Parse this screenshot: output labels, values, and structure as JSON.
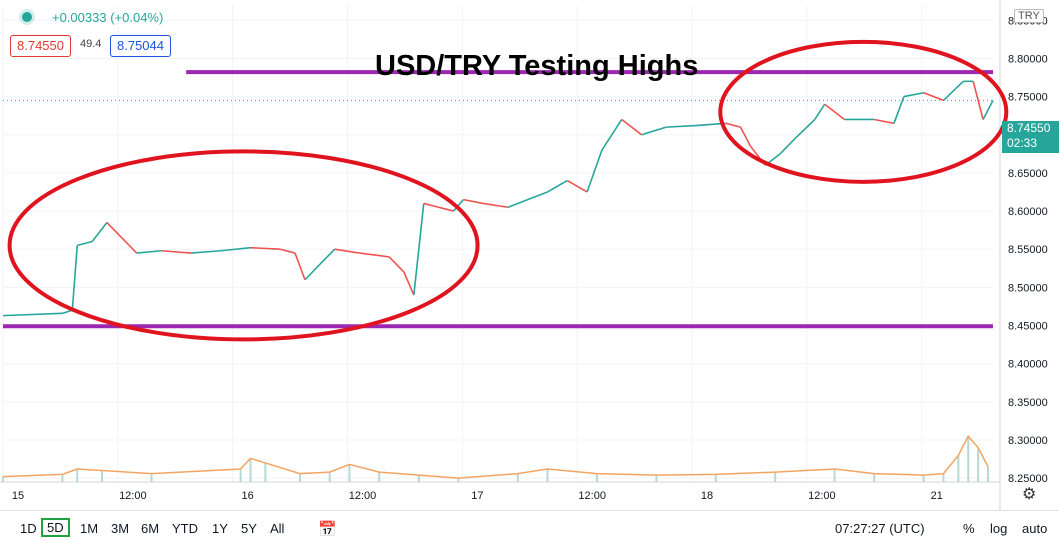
{
  "header": {
    "change": "+0.00333 (+0.04%)",
    "bid": "8.74550",
    "spread": "49.4",
    "ask": "8.75044",
    "symbol_tag": "TRY"
  },
  "annotation_title": "USD/TRY Testing Highs",
  "price_label": {
    "price": "8.74550",
    "countdown": "02:33"
  },
  "colors": {
    "up": "#26a69a",
    "down": "#ef5350",
    "purple": "#9c27b0",
    "ellipse": "#e0141e"
  },
  "chart_data": {
    "type": "line",
    "title": "USD/TRY Testing Highs",
    "x_ticks": [
      "15",
      "12:00",
      "16",
      "12:00",
      "17",
      "12:00",
      "18",
      "12:00",
      "21"
    ],
    "y_ticks": [
      "8.25000",
      "8.30000",
      "8.35000",
      "8.40000",
      "8.45000",
      "8.50000",
      "8.55000",
      "8.60000",
      "8.65000",
      "8.70000",
      "8.75000",
      "8.80000",
      "8.85000"
    ],
    "ylim": [
      8.245,
      8.87
    ],
    "xlim": [
      0,
      100
    ],
    "tick_x_positions": [
      0,
      11.6,
      23.2,
      34.8,
      46.4,
      58.0,
      69.6,
      81.2,
      92.8
    ],
    "series": [
      {
        "values": [
          [
            0,
            8.463
          ],
          [
            6.0,
            8.466
          ],
          [
            7.0,
            8.47
          ],
          [
            7.5,
            8.555
          ],
          [
            9,
            8.56
          ],
          [
            10.5,
            8.585
          ],
          [
            12,
            8.565
          ],
          [
            13.5,
            8.545
          ],
          [
            16,
            8.548
          ],
          [
            19,
            8.545
          ],
          [
            22,
            8.548
          ],
          [
            25,
            8.552
          ],
          [
            28,
            8.55
          ],
          [
            29.5,
            8.545
          ],
          [
            30.5,
            8.51
          ],
          [
            32,
            8.53
          ],
          [
            33.5,
            8.55
          ],
          [
            36,
            8.545
          ],
          [
            39,
            8.54
          ],
          [
            40.5,
            8.52
          ],
          [
            41.5,
            8.49
          ],
          [
            42.5,
            8.61
          ],
          [
            44,
            8.605
          ],
          [
            45.5,
            8.6
          ],
          [
            46.5,
            8.615
          ],
          [
            48.5,
            8.61
          ],
          [
            51,
            8.605
          ],
          [
            53,
            8.615
          ],
          [
            55,
            8.625
          ],
          [
            57,
            8.64
          ],
          [
            59,
            8.625
          ],
          [
            60.5,
            8.68
          ],
          [
            62.5,
            8.72
          ],
          [
            64.5,
            8.7
          ],
          [
            67,
            8.71
          ],
          [
            70,
            8.712
          ],
          [
            73,
            8.715
          ],
          [
            74.5,
            8.71
          ],
          [
            75.5,
            8.685
          ],
          [
            77,
            8.66
          ],
          [
            78.5,
            8.675
          ],
          [
            80,
            8.695
          ],
          [
            82,
            8.72
          ],
          [
            83,
            8.74
          ],
          [
            85,
            8.72
          ],
          [
            88,
            8.72
          ],
          [
            90,
            8.715
          ],
          [
            91,
            8.75
          ],
          [
            93,
            8.755
          ],
          [
            95,
            8.745
          ],
          [
            97,
            8.77
          ],
          [
            98,
            8.77
          ],
          [
            99,
            8.72
          ],
          [
            100,
            8.745
          ]
        ]
      }
    ],
    "volume": [
      [
        0,
        8.252
      ],
      [
        6,
        8.255
      ],
      [
        7.5,
        8.262
      ],
      [
        10,
        8.26
      ],
      [
        15,
        8.256
      ],
      [
        24,
        8.262
      ],
      [
        25,
        8.276
      ],
      [
        26.5,
        8.27
      ],
      [
        30,
        8.256
      ],
      [
        33,
        8.258
      ],
      [
        35,
        8.268
      ],
      [
        38,
        8.258
      ],
      [
        42,
        8.254
      ],
      [
        46,
        8.25
      ],
      [
        52,
        8.256
      ],
      [
        55,
        8.262
      ],
      [
        60,
        8.256
      ],
      [
        66,
        8.254
      ],
      [
        72,
        8.255
      ],
      [
        78,
        8.258
      ],
      [
        84,
        8.262
      ],
      [
        88,
        8.256
      ],
      [
        93,
        8.254
      ],
      [
        95,
        8.256
      ],
      [
        96.5,
        8.28
      ],
      [
        97.5,
        8.305
      ],
      [
        98.5,
        8.29
      ],
      [
        99.5,
        8.265
      ]
    ],
    "horizontal_lines": [
      {
        "y": 8.782,
        "x0": 18.5,
        "x1": 100
      },
      {
        "y": 8.449,
        "x0": 0,
        "x1": 100
      }
    ]
  },
  "range_buttons": [
    "1D",
    "5D",
    "1M",
    "3M",
    "6M",
    "YTD",
    "1Y",
    "5Y",
    "All"
  ],
  "active_range": "5D",
  "clock": "07:27:27 (UTC)",
  "options": {
    "percent": "%",
    "log": "log",
    "auto": "auto"
  }
}
